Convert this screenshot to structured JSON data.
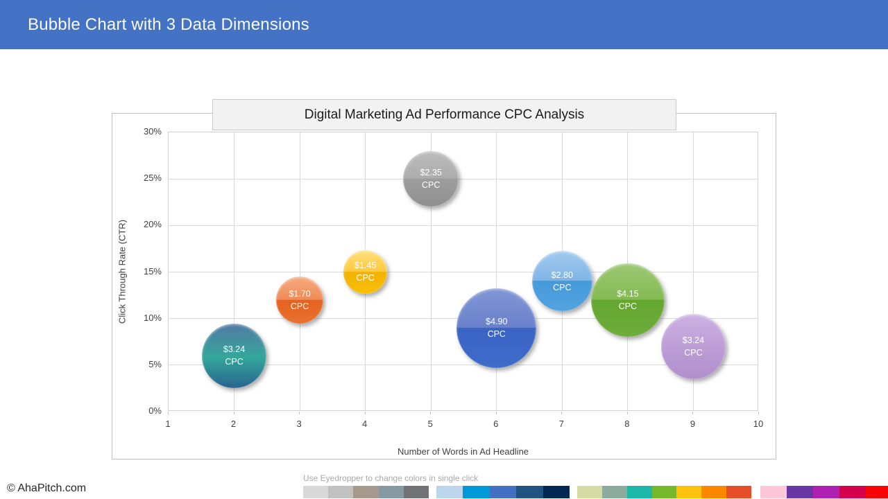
{
  "header": {
    "title": "Bubble Chart with 3 Data Dimensions",
    "accent_color": "#4472C4"
  },
  "chart_data": {
    "type": "bubble",
    "title": "Digital Marketing Ad Performance CPC Analysis",
    "xlabel": "Number of Words in Ad Headline",
    "ylabel": "Click Through Rate (CTR)",
    "xlim": [
      1,
      10
    ],
    "ylim": [
      0,
      30
    ],
    "x_ticks": [
      1,
      2,
      3,
      4,
      5,
      6,
      7,
      8,
      9,
      10
    ],
    "y_ticks": [
      0,
      5,
      10,
      15,
      20,
      25,
      30
    ],
    "y_tick_suffix": "%",
    "grid": true,
    "label_suffix": "CPC",
    "points": [
      {
        "x": 2,
        "ctr_pct": 6,
        "cpc": 3.24,
        "color_name": "teal",
        "finish": "smooth",
        "gradient": [
          "#5279A3",
          "#34A79B",
          "#27648E"
        ]
      },
      {
        "x": 3,
        "ctr_pct": 12,
        "cpc": 1.7,
        "color_name": "orange",
        "finish": "gloss",
        "gradient": [
          "#F5AB80",
          "#EF8B57",
          "#E7601E",
          "#E97330"
        ]
      },
      {
        "x": 4,
        "ctr_pct": 15,
        "cpc": 1.45,
        "color_name": "yellow",
        "finish": "gloss",
        "gradient": [
          "#FFDF7E",
          "#FEC93C",
          "#F2B100",
          "#F8C00A"
        ]
      },
      {
        "x": 5,
        "ctr_pct": 25,
        "cpc": 2.35,
        "color_name": "gray",
        "finish": "gloss",
        "gradient": [
          "#BDBDBD",
          "#ACACAC",
          "#9E9E9E",
          "#8F8F8F"
        ]
      },
      {
        "x": 6,
        "ctr_pct": 9,
        "cpc": 4.9,
        "color_name": "blue",
        "finish": "gloss",
        "gradient": [
          "#8197D5",
          "#6A81CB",
          "#3A63C4",
          "#3E6CC9"
        ]
      },
      {
        "x": 7,
        "ctr_pct": 14,
        "cpc": 2.8,
        "color_name": "light-blue",
        "finish": "gloss",
        "gradient": [
          "#A3CBEE",
          "#7FB5E6",
          "#459ADA",
          "#54A3DF"
        ]
      },
      {
        "x": 8,
        "ctr_pct": 12,
        "cpc": 4.15,
        "color_name": "green",
        "finish": "gloss",
        "gradient": [
          "#9DC873",
          "#84BA54",
          "#63A72F",
          "#6FAC3C"
        ]
      },
      {
        "x": 9,
        "ctr_pct": 7,
        "cpc": 3.24,
        "color_name": "purple",
        "finish": "smooth",
        "gradient": [
          "#CDB2E2",
          "#BD9DD5",
          "#B18FCC"
        ]
      }
    ]
  },
  "footer": {
    "copyright": "© AhaPitch.com",
    "hint": "Use Eyedropper to change colors in single click",
    "palette_groups": [
      [
        "#D9D9D9",
        "#C1C1C1",
        "#A79A8D",
        "#8499A1",
        "#707276"
      ],
      [
        "#BCD5EC",
        "#0099D8",
        "#4470C4",
        "#205382",
        "#032953"
      ],
      [
        "#D5DBA3",
        "#8CAB9D",
        "#1CB8AA",
        "#77B72B",
        "#FDC10E",
        "#FC8800",
        "#E44D26"
      ],
      [
        "#FEC7D9",
        "#6936A3",
        "#AD20B2",
        "#D4004E",
        "#F90505"
      ]
    ]
  }
}
